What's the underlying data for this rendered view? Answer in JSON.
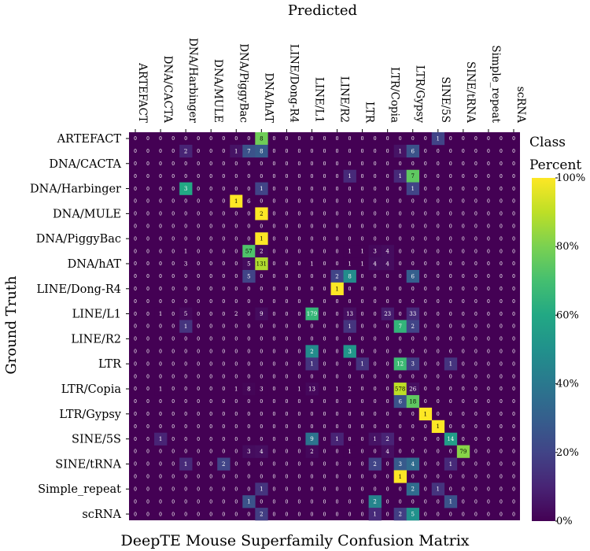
{
  "chart_data": {
    "type": "heatmap",
    "title": "DeepTE Mouse Superfamily Confusion Matrix",
    "xlabel": "Predicted",
    "ylabel": "Ground Truth",
    "x_labels": [
      "ARTEFACT",
      "DNA/CACTA",
      "DNA/Harbinger",
      "DNA/MULE",
      "DNA/PiggyBac",
      "DNA/hAT",
      "LINE/Dong-R4",
      "LINE/L1",
      "LINE/R2",
      "LTR",
      "LTR/Copia",
      "LTR/Gypsy",
      "SINE/5S",
      "SINE/tRNA",
      "Simple_repeat",
      "scRNA"
    ],
    "y_labels": [
      "ARTEFACT",
      "DNA/CACTA",
      "DNA/Harbinger",
      "DNA/MULE",
      "DNA/PiggyBac",
      "DNA/hAT",
      "LINE/Dong-R4",
      "LINE/L1",
      "LINE/R2",
      "LTR",
      "LTR/Copia",
      "LTR/Gypsy",
      "SINE/5S",
      "SINE/tRNA",
      "Simple_repeat",
      "scRNA"
    ],
    "colorbar": {
      "title": "Class Percent",
      "ticks": [
        "0%",
        "20%",
        "40%",
        "60%",
        "80%",
        "100%"
      ],
      "colormap": "viridis",
      "low_color": "#440154",
      "high_color": "#fde725"
    },
    "cells": [
      {
        "r": 0,
        "c": 10,
        "v": "8",
        "p": 0.78
      },
      {
        "r": 0,
        "c": 24,
        "v": "1",
        "p": 0.2
      },
      {
        "r": 1,
        "c": 4,
        "v": "2",
        "p": 0.1
      },
      {
        "r": 1,
        "c": 8,
        "v": "1",
        "p": 0.05
      },
      {
        "r": 1,
        "c": 9,
        "v": "7",
        "p": 0.25
      },
      {
        "r": 1,
        "c": 10,
        "v": "8",
        "p": 0.28
      },
      {
        "r": 1,
        "c": 21,
        "v": "1",
        "p": 0.05
      },
      {
        "r": 1,
        "c": 22,
        "v": "6",
        "p": 0.25
      },
      {
        "r": 3,
        "c": 17,
        "v": "1",
        "p": 0.12
      },
      {
        "r": 3,
        "c": 21,
        "v": "1",
        "p": 0.12
      },
      {
        "r": 3,
        "c": 22,
        "v": "7",
        "p": 0.75
      },
      {
        "r": 4,
        "c": 4,
        "v": "3",
        "p": 0.6
      },
      {
        "r": 4,
        "c": 10,
        "v": "1",
        "p": 0.2
      },
      {
        "r": 4,
        "c": 22,
        "v": "1",
        "p": 0.2
      },
      {
        "r": 5,
        "c": 8,
        "v": "1",
        "p": 1.0
      },
      {
        "r": 5,
        "c": 9,
        "v": "6",
        "p": 0.0
      },
      {
        "r": 6,
        "c": 10,
        "v": "2",
        "p": 1.0
      },
      {
        "r": 8,
        "c": 10,
        "v": "1",
        "p": 1.0
      },
      {
        "r": 9,
        "c": 4,
        "v": "1",
        "p": 0.0
      },
      {
        "r": 9,
        "c": 9,
        "v": "57",
        "p": 0.72
      },
      {
        "r": 9,
        "c": 10,
        "v": "2",
        "p": 0.02
      },
      {
        "r": 9,
        "c": 17,
        "v": "1",
        "p": 0.0
      },
      {
        "r": 9,
        "c": 18,
        "v": "1",
        "p": 0.0
      },
      {
        "r": 9,
        "c": 19,
        "v": "3",
        "p": 0.02
      },
      {
        "r": 9,
        "c": 20,
        "v": "4",
        "p": 0.03
      },
      {
        "r": 10,
        "c": 4,
        "v": "3",
        "p": 0.0
      },
      {
        "r": 10,
        "c": 9,
        "v": "5",
        "p": 0.03
      },
      {
        "r": 10,
        "c": 10,
        "v": "131",
        "p": 0.88
      },
      {
        "r": 10,
        "c": 14,
        "v": "1",
        "p": 0.0
      },
      {
        "r": 10,
        "c": 17,
        "v": "1",
        "p": 0.0
      },
      {
        "r": 10,
        "c": 18,
        "v": "1",
        "p": 0.0
      },
      {
        "r": 10,
        "c": 19,
        "v": "4",
        "p": 0.03
      },
      {
        "r": 10,
        "c": 20,
        "v": "4",
        "p": 0.03
      },
      {
        "r": 11,
        "c": 9,
        "v": "5",
        "p": 0.2
      },
      {
        "r": 11,
        "c": 16,
        "v": "2",
        "p": 0.2
      },
      {
        "r": 11,
        "c": 17,
        "v": "8",
        "p": 0.48
      },
      {
        "r": 11,
        "c": 22,
        "v": "6",
        "p": 0.3
      },
      {
        "r": 12,
        "c": 16,
        "v": "1",
        "p": 1.0
      },
      {
        "r": 14,
        "c": 2,
        "v": "1",
        "p": 0.0
      },
      {
        "r": 14,
        "c": 4,
        "v": "5",
        "p": 0.02
      },
      {
        "r": 14,
        "c": 8,
        "v": "2",
        "p": 0.0
      },
      {
        "r": 14,
        "c": 10,
        "v": "9",
        "p": 0.03
      },
      {
        "r": 14,
        "c": 14,
        "v": "179",
        "p": 0.66
      },
      {
        "r": 14,
        "c": 17,
        "v": "13",
        "p": 0.04
      },
      {
        "r": 14,
        "c": 20,
        "v": "23",
        "p": 0.08
      },
      {
        "r": 14,
        "c": 22,
        "v": "33",
        "p": 0.12
      },
      {
        "r": 15,
        "c": 4,
        "v": "1",
        "p": 0.15
      },
      {
        "r": 15,
        "c": 17,
        "v": "1",
        "p": 0.15
      },
      {
        "r": 15,
        "c": 21,
        "v": "7",
        "p": 0.65
      },
      {
        "r": 15,
        "c": 22,
        "v": "2",
        "p": 0.2
      },
      {
        "r": 17,
        "c": 14,
        "v": "2",
        "p": 0.48
      },
      {
        "r": 17,
        "c": 17,
        "v": "3",
        "p": 0.52
      },
      {
        "r": 18,
        "c": 14,
        "v": "1",
        "p": 0.15
      },
      {
        "r": 18,
        "c": 18,
        "v": "1",
        "p": 0.15
      },
      {
        "r": 18,
        "c": 21,
        "v": "12",
        "p": 0.68
      },
      {
        "r": 18,
        "c": 22,
        "v": "3",
        "p": 0.18
      },
      {
        "r": 18,
        "c": 25,
        "v": "1",
        "p": 0.15
      },
      {
        "r": 20,
        "c": 2,
        "v": "1",
        "p": 0.0
      },
      {
        "r": 20,
        "c": 8,
        "v": "1",
        "p": 0.0
      },
      {
        "r": 20,
        "c": 9,
        "v": "8",
        "p": 0.01
      },
      {
        "r": 20,
        "c": 10,
        "v": "3",
        "p": 0.0
      },
      {
        "r": 20,
        "c": 13,
        "v": "1",
        "p": 0.0
      },
      {
        "r": 20,
        "c": 14,
        "v": "13",
        "p": 0.02
      },
      {
        "r": 20,
        "c": 16,
        "v": "1",
        "p": 0.0
      },
      {
        "r": 20,
        "c": 17,
        "v": "2",
        "p": 0.0
      },
      {
        "r": 20,
        "c": 21,
        "v": "578",
        "p": 0.9
      },
      {
        "r": 20,
        "c": 22,
        "v": "26",
        "p": 0.04
      },
      {
        "r": 21,
        "c": 21,
        "v": "6",
        "p": 0.25
      },
      {
        "r": 21,
        "c": 22,
        "v": "18",
        "p": 0.75
      },
      {
        "r": 22,
        "c": 23,
        "v": "1",
        "p": 1.0
      },
      {
        "r": 23,
        "c": 24,
        "v": "1",
        "p": 1.0
      },
      {
        "r": 24,
        "c": 2,
        "v": "1",
        "p": 0.1
      },
      {
        "r": 24,
        "c": 14,
        "v": "9",
        "p": 0.38
      },
      {
        "r": 24,
        "c": 16,
        "v": "1",
        "p": 0.1
      },
      {
        "r": 24,
        "c": 19,
        "v": "1",
        "p": 0.05
      },
      {
        "r": 24,
        "c": 20,
        "v": "2",
        "p": 0.1
      },
      {
        "r": 24,
        "c": 25,
        "v": "14",
        "p": 0.55
      },
      {
        "r": 25,
        "c": 9,
        "v": "3",
        "p": 0.03
      },
      {
        "r": 25,
        "c": 10,
        "v": "4",
        "p": 0.04
      },
      {
        "r": 25,
        "c": 14,
        "v": "2",
        "p": 0.02
      },
      {
        "r": 25,
        "c": 17,
        "v": "1",
        "p": 0.0
      },
      {
        "r": 25,
        "c": 20,
        "v": "4",
        "p": 0.04
      },
      {
        "r": 25,
        "c": 26,
        "v": "79",
        "p": 0.82
      },
      {
        "r": 26,
        "c": 4,
        "v": "1",
        "p": 0.12
      },
      {
        "r": 26,
        "c": 7,
        "v": "2",
        "p": 0.2
      },
      {
        "r": 26,
        "c": 19,
        "v": "2",
        "p": 0.2
      },
      {
        "r": 26,
        "c": 21,
        "v": "3",
        "p": 0.28
      },
      {
        "r": 26,
        "c": 22,
        "v": "4",
        "p": 0.35
      },
      {
        "r": 26,
        "c": 25,
        "v": "1",
        "p": 0.12
      },
      {
        "r": 27,
        "c": 21,
        "v": "1",
        "p": 1.0
      },
      {
        "r": 28,
        "c": 10,
        "v": "1",
        "p": 0.15
      },
      {
        "r": 28,
        "c": 22,
        "v": "2",
        "p": 0.35
      },
      {
        "r": 28,
        "c": 24,
        "v": "1",
        "p": 0.15
      },
      {
        "r": 29,
        "c": 9,
        "v": "1",
        "p": 0.25
      },
      {
        "r": 29,
        "c": 19,
        "v": "2",
        "p": 0.45
      },
      {
        "r": 29,
        "c": 25,
        "v": "1",
        "p": 0.25
      },
      {
        "r": 30,
        "c": 10,
        "v": "2",
        "p": 0.18
      },
      {
        "r": 30,
        "c": 19,
        "v": "1",
        "p": 0.12
      },
      {
        "r": 30,
        "c": 21,
        "v": "2",
        "p": 0.18
      },
      {
        "r": 30,
        "c": 22,
        "v": "5",
        "p": 0.5
      }
    ]
  }
}
